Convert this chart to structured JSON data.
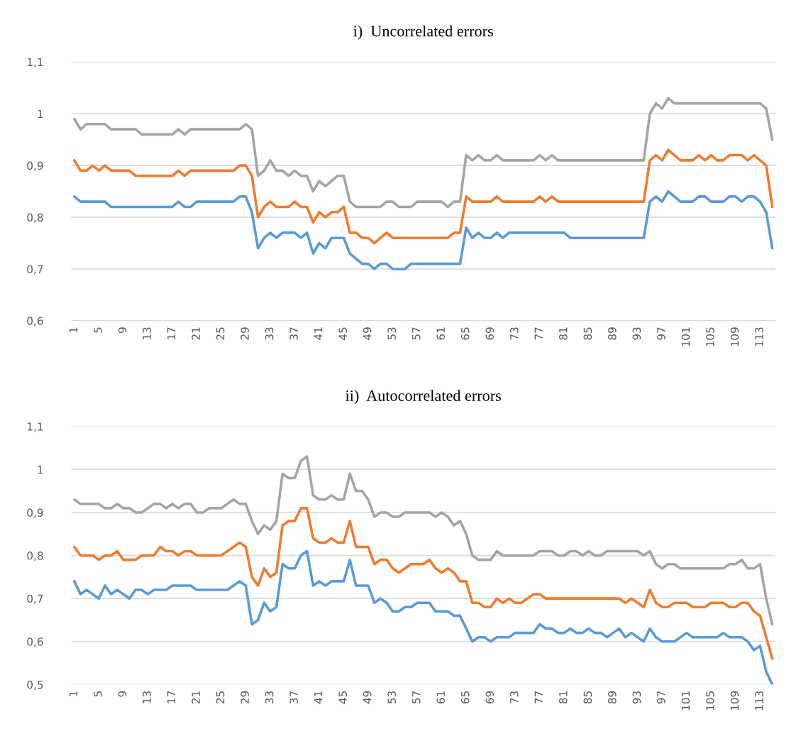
{
  "chart_data": [
    {
      "type": "line",
      "title": "i)  Uncorrelated errors",
      "categories": [
        "1",
        null,
        null,
        null,
        "5",
        null,
        null,
        null,
        "9",
        null,
        null,
        null,
        "13",
        null,
        null,
        null,
        "17",
        null,
        null,
        null,
        "21",
        null,
        null,
        null,
        "25",
        null,
        null,
        null,
        "29",
        null,
        null,
        null,
        "33",
        null,
        null,
        null,
        "37",
        null,
        null,
        null,
        "41",
        null,
        null,
        null,
        "45",
        null,
        null,
        null,
        "49",
        null,
        null,
        null,
        "53",
        null,
        null,
        null,
        "57",
        null,
        null,
        null,
        "61",
        null,
        null,
        null,
        "65",
        null,
        null,
        null,
        "69",
        null,
        null,
        null,
        "73",
        null,
        null,
        null,
        "77",
        null,
        null,
        null,
        "81",
        null,
        null,
        null,
        "85",
        null,
        null,
        null,
        "89",
        null,
        null,
        null,
        "93",
        null,
        null,
        null,
        "97",
        null,
        null,
        null,
        "101",
        null,
        null,
        null,
        "105",
        null,
        null,
        null,
        "109",
        null,
        null,
        null,
        "113",
        null,
        null
      ],
      "ylim": [
        0.6,
        1.1
      ],
      "yticks": [
        {
          "value": 0.6,
          "label": "0,6"
        },
        {
          "value": 0.7,
          "label": "0,7"
        },
        {
          "value": 0.8,
          "label": "0,8"
        },
        {
          "value": 0.9,
          "label": "0,9"
        },
        {
          "value": 1.0,
          "label": "1"
        },
        {
          "value": 1.1,
          "label": "1,1"
        }
      ],
      "grid": "y",
      "marker": "none",
      "line_style": "solid",
      "series": [
        {
          "color": "#5b9bd5",
          "values": [
            0.84,
            0.83,
            0.83,
            0.83,
            0.83,
            0.83,
            0.82,
            0.82,
            0.82,
            0.82,
            0.82,
            0.82,
            0.82,
            0.82,
            0.82,
            0.82,
            0.82,
            0.83,
            0.82,
            0.82,
            0.83,
            0.83,
            0.83,
            0.83,
            0.83,
            0.83,
            0.83,
            0.84,
            0.84,
            0.81,
            0.74,
            0.76,
            0.77,
            0.76,
            0.77,
            0.77,
            0.77,
            0.76,
            0.77,
            0.73,
            0.75,
            0.74,
            0.76,
            0.76,
            0.76,
            0.73,
            0.72,
            0.71,
            0.71,
            0.7,
            0.71,
            0.71,
            0.7,
            0.7,
            0.7,
            0.71,
            0.71,
            0.71,
            0.71,
            0.71,
            0.71,
            0.71,
            0.71,
            0.71,
            0.78,
            0.76,
            0.77,
            0.76,
            0.76,
            0.77,
            0.76,
            0.77,
            0.77,
            0.77,
            0.77,
            0.77,
            0.77,
            0.77,
            0.77,
            0.77,
            0.77,
            0.76,
            0.76,
            0.76,
            0.76,
            0.76,
            0.76,
            0.76,
            0.76,
            0.76,
            0.76,
            0.76,
            0.76,
            0.76,
            0.83,
            0.84,
            0.83,
            0.85,
            0.84,
            0.83,
            0.83,
            0.83,
            0.84,
            0.84,
            0.83,
            0.83,
            0.83,
            0.84,
            0.84,
            0.83,
            0.84,
            0.84,
            0.83,
            0.81,
            0.74
          ]
        },
        {
          "color": "#ed7d31",
          "values": [
            0.91,
            0.89,
            0.89,
            0.9,
            0.89,
            0.9,
            0.89,
            0.89,
            0.89,
            0.89,
            0.88,
            0.88,
            0.88,
            0.88,
            0.88,
            0.88,
            0.88,
            0.89,
            0.88,
            0.89,
            0.89,
            0.89,
            0.89,
            0.89,
            0.89,
            0.89,
            0.89,
            0.9,
            0.9,
            0.88,
            0.8,
            0.82,
            0.83,
            0.82,
            0.82,
            0.82,
            0.83,
            0.82,
            0.82,
            0.79,
            0.81,
            0.8,
            0.81,
            0.81,
            0.82,
            0.77,
            0.77,
            0.76,
            0.76,
            0.75,
            0.76,
            0.77,
            0.76,
            0.76,
            0.76,
            0.76,
            0.76,
            0.76,
            0.76,
            0.76,
            0.76,
            0.76,
            0.77,
            0.77,
            0.84,
            0.83,
            0.83,
            0.83,
            0.83,
            0.84,
            0.83,
            0.83,
            0.83,
            0.83,
            0.83,
            0.83,
            0.84,
            0.83,
            0.84,
            0.83,
            0.83,
            0.83,
            0.83,
            0.83,
            0.83,
            0.83,
            0.83,
            0.83,
            0.83,
            0.83,
            0.83,
            0.83,
            0.83,
            0.83,
            0.91,
            0.92,
            0.91,
            0.93,
            0.92,
            0.91,
            0.91,
            0.91,
            0.92,
            0.91,
            0.92,
            0.91,
            0.91,
            0.92,
            0.92,
            0.92,
            0.91,
            0.92,
            0.91,
            0.9,
            0.82
          ]
        },
        {
          "color": "#a5a5a5",
          "values": [
            0.99,
            0.97,
            0.98,
            0.98,
            0.98,
            0.98,
            0.97,
            0.97,
            0.97,
            0.97,
            0.97,
            0.96,
            0.96,
            0.96,
            0.96,
            0.96,
            0.96,
            0.97,
            0.96,
            0.97,
            0.97,
            0.97,
            0.97,
            0.97,
            0.97,
            0.97,
            0.97,
            0.97,
            0.98,
            0.97,
            0.88,
            0.89,
            0.91,
            0.89,
            0.89,
            0.88,
            0.89,
            0.88,
            0.88,
            0.85,
            0.87,
            0.86,
            0.87,
            0.88,
            0.88,
            0.83,
            0.82,
            0.82,
            0.82,
            0.82,
            0.82,
            0.83,
            0.83,
            0.82,
            0.82,
            0.82,
            0.83,
            0.83,
            0.83,
            0.83,
            0.83,
            0.82,
            0.83,
            0.83,
            0.92,
            0.91,
            0.92,
            0.91,
            0.91,
            0.92,
            0.91,
            0.91,
            0.91,
            0.91,
            0.91,
            0.91,
            0.92,
            0.91,
            0.92,
            0.91,
            0.91,
            0.91,
            0.91,
            0.91,
            0.91,
            0.91,
            0.91,
            0.91,
            0.91,
            0.91,
            0.91,
            0.91,
            0.91,
            0.91,
            1.0,
            1.02,
            1.01,
            1.03,
            1.02,
            1.02,
            1.02,
            1.02,
            1.02,
            1.02,
            1.02,
            1.02,
            1.02,
            1.02,
            1.02,
            1.02,
            1.02,
            1.02,
            1.02,
            1.01,
            0.95
          ]
        }
      ]
    },
    {
      "type": "line",
      "title": "ii)  Autocorrelated errors",
      "categories": [
        "1",
        null,
        null,
        null,
        "5",
        null,
        null,
        null,
        "9",
        null,
        null,
        null,
        "13",
        null,
        null,
        null,
        "17",
        null,
        null,
        null,
        "21",
        null,
        null,
        null,
        "25",
        null,
        null,
        null,
        "29",
        null,
        null,
        null,
        "33",
        null,
        null,
        null,
        "37",
        null,
        null,
        null,
        "41",
        null,
        null,
        null,
        "45",
        null,
        null,
        null,
        "49",
        null,
        null,
        null,
        "53",
        null,
        null,
        null,
        "57",
        null,
        null,
        null,
        "61",
        null,
        null,
        null,
        "65",
        null,
        null,
        null,
        "69",
        null,
        null,
        null,
        "73",
        null,
        null,
        null,
        "77",
        null,
        null,
        null,
        "81",
        null,
        null,
        null,
        "85",
        null,
        null,
        null,
        "89",
        null,
        null,
        null,
        "93",
        null,
        null,
        null,
        "97",
        null,
        null,
        null,
        "101",
        null,
        null,
        null,
        "105",
        null,
        null,
        null,
        "109",
        null,
        null,
        null,
        "113",
        null,
        null
      ],
      "ylim": [
        0.5,
        1.1
      ],
      "yticks": [
        {
          "value": 0.5,
          "label": "0,5"
        },
        {
          "value": 0.6,
          "label": "0,6"
        },
        {
          "value": 0.7,
          "label": "0,7"
        },
        {
          "value": 0.8,
          "label": "0,8"
        },
        {
          "value": 0.9,
          "label": "0,9"
        },
        {
          "value": 1.0,
          "label": "1"
        },
        {
          "value": 1.1,
          "label": "1,1"
        }
      ],
      "grid": "y",
      "marker": "none",
      "line_style": "solid",
      "series": [
        {
          "color": "#5b9bd5",
          "values": [
            0.74,
            0.71,
            0.72,
            0.71,
            0.7,
            0.73,
            0.71,
            0.72,
            0.71,
            0.7,
            0.72,
            0.72,
            0.71,
            0.72,
            0.72,
            0.72,
            0.73,
            0.73,
            0.73,
            0.73,
            0.72,
            0.72,
            0.72,
            0.72,
            0.72,
            0.72,
            0.73,
            0.74,
            0.73,
            0.64,
            0.65,
            0.69,
            0.67,
            0.68,
            0.78,
            0.77,
            0.77,
            0.8,
            0.81,
            0.73,
            0.74,
            0.73,
            0.74,
            0.74,
            0.74,
            0.79,
            0.73,
            0.73,
            0.73,
            0.69,
            0.7,
            0.69,
            0.67,
            0.67,
            0.68,
            0.68,
            0.69,
            0.69,
            0.69,
            0.67,
            0.67,
            0.67,
            0.66,
            0.66,
            0.63,
            0.6,
            0.61,
            0.61,
            0.6,
            0.61,
            0.61,
            0.61,
            0.62,
            0.62,
            0.62,
            0.62,
            0.64,
            0.63,
            0.63,
            0.62,
            0.62,
            0.63,
            0.62,
            0.62,
            0.63,
            0.62,
            0.62,
            0.61,
            0.62,
            0.63,
            0.61,
            0.62,
            0.61,
            0.6,
            0.63,
            0.61,
            0.6,
            0.6,
            0.6,
            0.61,
            0.62,
            0.61,
            0.61,
            0.61,
            0.61,
            0.61,
            0.62,
            0.61,
            0.61,
            0.61,
            0.6,
            0.58,
            0.59,
            0.53,
            0.5
          ]
        },
        {
          "color": "#ed7d31",
          "values": [
            0.82,
            0.8,
            0.8,
            0.8,
            0.79,
            0.8,
            0.8,
            0.81,
            0.79,
            0.79,
            0.79,
            0.8,
            0.8,
            0.8,
            0.82,
            0.81,
            0.81,
            0.8,
            0.81,
            0.81,
            0.8,
            0.8,
            0.8,
            0.8,
            0.8,
            0.81,
            0.82,
            0.83,
            0.82,
            0.75,
            0.73,
            0.77,
            0.75,
            0.76,
            0.87,
            0.88,
            0.88,
            0.91,
            0.91,
            0.84,
            0.83,
            0.83,
            0.84,
            0.83,
            0.83,
            0.88,
            0.82,
            0.82,
            0.82,
            0.78,
            0.79,
            0.79,
            0.77,
            0.76,
            0.77,
            0.78,
            0.78,
            0.78,
            0.79,
            0.77,
            0.76,
            0.77,
            0.76,
            0.74,
            0.74,
            0.69,
            0.69,
            0.68,
            0.68,
            0.7,
            0.69,
            0.7,
            0.69,
            0.69,
            0.7,
            0.71,
            0.71,
            0.7,
            0.7,
            0.7,
            0.7,
            0.7,
            0.7,
            0.7,
            0.7,
            0.7,
            0.7,
            0.7,
            0.7,
            0.7,
            0.69,
            0.7,
            0.69,
            0.68,
            0.72,
            0.69,
            0.68,
            0.68,
            0.69,
            0.69,
            0.69,
            0.68,
            0.68,
            0.68,
            0.69,
            0.69,
            0.69,
            0.68,
            0.68,
            0.69,
            0.69,
            0.67,
            0.66,
            0.61,
            0.56
          ]
        },
        {
          "color": "#a5a5a5",
          "values": [
            0.93,
            0.92,
            0.92,
            0.92,
            0.92,
            0.91,
            0.91,
            0.92,
            0.91,
            0.91,
            0.9,
            0.9,
            0.91,
            0.92,
            0.92,
            0.91,
            0.92,
            0.91,
            0.92,
            0.92,
            0.9,
            0.9,
            0.91,
            0.91,
            0.91,
            0.92,
            0.93,
            0.92,
            0.92,
            0.88,
            0.85,
            0.87,
            0.86,
            0.88,
            0.99,
            0.98,
            0.98,
            1.02,
            1.03,
            0.94,
            0.93,
            0.93,
            0.94,
            0.93,
            0.93,
            0.99,
            0.95,
            0.95,
            0.93,
            0.89,
            0.9,
            0.9,
            0.89,
            0.89,
            0.9,
            0.9,
            0.9,
            0.9,
            0.9,
            0.89,
            0.9,
            0.89,
            0.87,
            0.88,
            0.85,
            0.8,
            0.79,
            0.79,
            0.79,
            0.81,
            0.8,
            0.8,
            0.8,
            0.8,
            0.8,
            0.8,
            0.81,
            0.81,
            0.81,
            0.8,
            0.8,
            0.81,
            0.81,
            0.8,
            0.81,
            0.8,
            0.8,
            0.81,
            0.81,
            0.81,
            0.81,
            0.81,
            0.81,
            0.8,
            0.81,
            0.78,
            0.77,
            0.78,
            0.78,
            0.77,
            0.77,
            0.77,
            0.77,
            0.77,
            0.77,
            0.77,
            0.77,
            0.78,
            0.78,
            0.79,
            0.77,
            0.77,
            0.78,
            0.7,
            0.64
          ]
        }
      ]
    }
  ]
}
